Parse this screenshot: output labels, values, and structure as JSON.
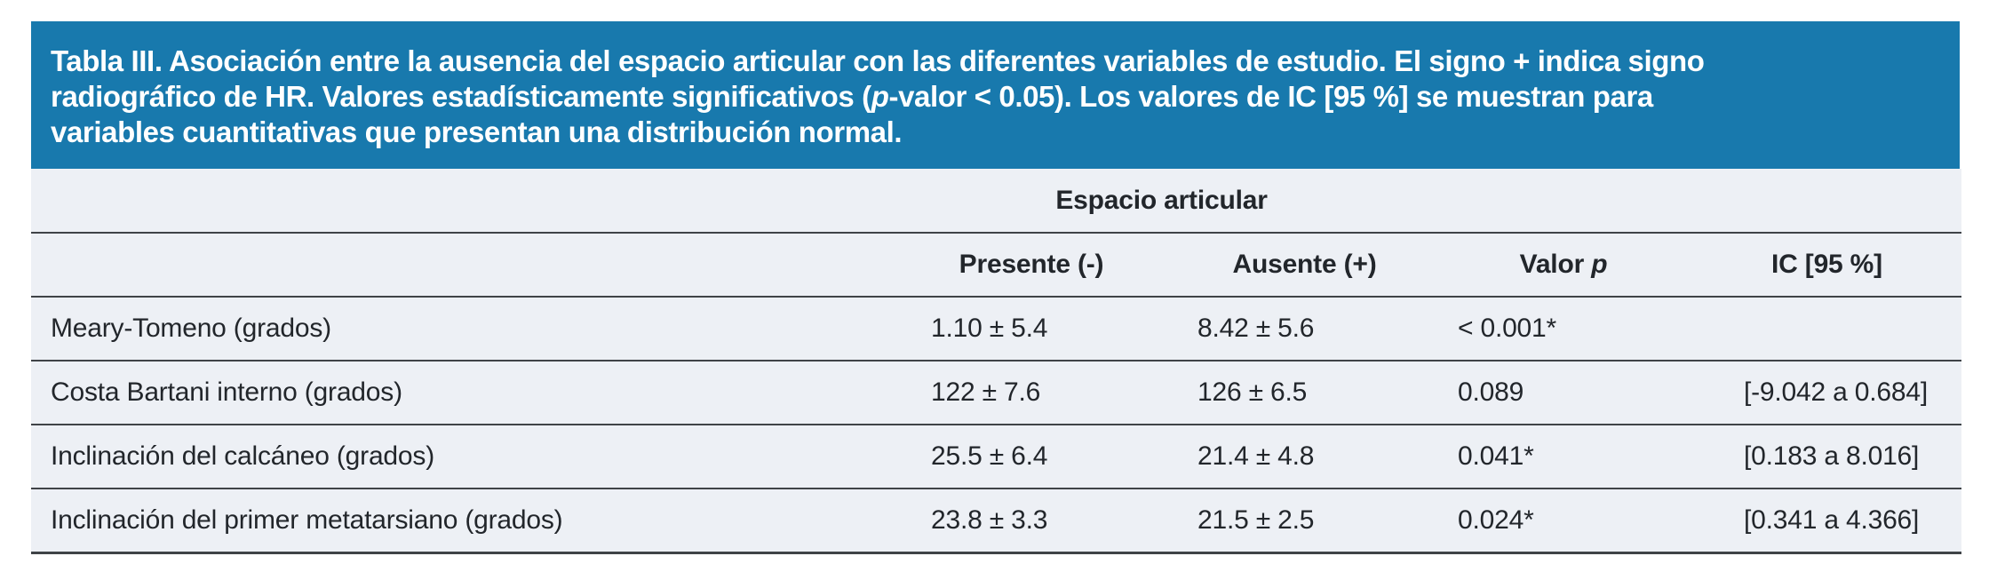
{
  "caption": {
    "line1": "Tabla III. Asociación entre la ausencia del espacio articular con las diferentes variables de estudio. El signo + indica signo",
    "line2_pre": "radiográfico de HR. Valores estadísticamente significativos (",
    "line2_italic": "p",
    "line2_post": "-valor < 0.05). Los valores de IC [95 %] se muestran para",
    "line3": "variables cuantitativas que presentan una distribución normal."
  },
  "table": {
    "group_header": "Espacio articular",
    "columns": {
      "presente": "Presente (-)",
      "ausente": "Ausente (+)",
      "valor_pre": "Valor ",
      "valor_italic": "p",
      "ic": "IC [95 %]"
    },
    "rows": [
      {
        "label": "Meary-Tomeno (grados)",
        "presente": "1.10 ± 5.4",
        "ausente": "8.42 ± 5.6",
        "p": "< 0.001*",
        "ic": ""
      },
      {
        "label": "Costa Bartani interno (grados)",
        "presente": "122 ± 7.6",
        "ausente": "126 ± 6.5",
        "p": "0.089",
        "ic": "[-9.042 a 0.684]"
      },
      {
        "label": "Inclinación del calcáneo (grados)",
        "presente": "25.5 ± 6.4",
        "ausente": "21.4 ± 4.8",
        "p": "0.041*",
        "ic": "[0.183 a 8.016]"
      },
      {
        "label": "Inclinación del primer metatarsiano (grados)",
        "presente": "23.8 ± 3.3",
        "ausente": "21.5 ± 2.5",
        "p": "0.024*",
        "ic": "[0.341 a 4.366]"
      }
    ]
  },
  "colors": {
    "caption_bg": "#1879ad",
    "caption_text": "#ffffff",
    "table_bg": "#edf0f5",
    "line": "#3f4347",
    "text": "#22262b"
  }
}
